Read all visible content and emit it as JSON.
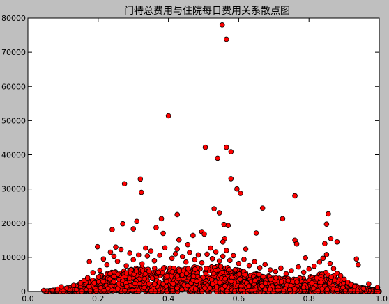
{
  "chart_data": {
    "type": "scatter",
    "title": "门特总费用与住院每日费用关系散点图",
    "xlabel": "",
    "ylabel": "",
    "xlim": [
      0.0,
      1.0
    ],
    "ylim": [
      0,
      80000
    ],
    "xticks": [
      0.0,
      0.2,
      0.4,
      0.6,
      0.8,
      1.0
    ],
    "xtick_labels": [
      "0.0",
      "0.2",
      "0.4",
      "0.6",
      "0.8",
      "1.0"
    ],
    "yticks": [
      0,
      10000,
      20000,
      30000,
      40000,
      50000,
      60000,
      70000,
      80000
    ],
    "ytick_labels": [
      "0",
      "10000",
      "20000",
      "30000",
      "40000",
      "50000",
      "60000",
      "70000",
      "80000"
    ],
    "grid": false,
    "marker_color": "#ff0000",
    "marker_edge": "#000000",
    "points": [
      [
        0.553,
        78000
      ],
      [
        0.565,
        73800
      ],
      [
        0.4,
        51400
      ],
      [
        0.505,
        42200
      ],
      [
        0.565,
        42200
      ],
      [
        0.578,
        40900
      ],
      [
        0.54,
        39000
      ],
      [
        0.275,
        31500
      ],
      [
        0.32,
        32900
      ],
      [
        0.323,
        29000
      ],
      [
        0.578,
        33000
      ],
      [
        0.595,
        30000
      ],
      [
        0.605,
        28700
      ],
      [
        0.76,
        28000
      ],
      [
        0.668,
        24400
      ],
      [
        0.53,
        24200
      ],
      [
        0.545,
        23000
      ],
      [
        0.855,
        22700
      ],
      [
        0.425,
        22500
      ],
      [
        0.725,
        21300
      ],
      [
        0.31,
        20500
      ],
      [
        0.85,
        19700
      ],
      [
        0.27,
        19800
      ],
      [
        0.558,
        19600
      ],
      [
        0.57,
        19300
      ],
      [
        0.38,
        21300
      ],
      [
        0.24,
        18100
      ],
      [
        0.3,
        18300
      ],
      [
        0.365,
        18700
      ],
      [
        0.385,
        17000
      ],
      [
        0.47,
        16400
      ],
      [
        0.495,
        17500
      ],
      [
        0.502,
        16800
      ],
      [
        0.65,
        17100
      ],
      [
        0.43,
        15100
      ],
      [
        0.56,
        15500
      ],
      [
        0.76,
        15000
      ],
      [
        0.862,
        15500
      ],
      [
        0.88,
        14500
      ],
      [
        0.845,
        14000
      ],
      [
        0.25,
        13000
      ],
      [
        0.198,
        13100
      ],
      [
        0.765,
        13900
      ],
      [
        0.935,
        9500
      ],
      [
        0.555,
        14500
      ],
      [
        0.455,
        13700
      ],
      [
        0.52,
        12700
      ],
      [
        0.335,
        12700
      ],
      [
        0.425,
        12400
      ],
      [
        0.62,
        12400
      ],
      [
        0.79,
        9800
      ],
      [
        0.94,
        7800
      ],
      [
        0.175,
        8700
      ],
      [
        0.97,
        2200
      ],
      [
        0.995,
        1200
      ],
      [
        0.045,
        300
      ],
      [
        0.07,
        300
      ],
      [
        0.085,
        700
      ],
      [
        0.095,
        1400
      ],
      [
        0.11,
        1000
      ],
      [
        0.13,
        1800
      ],
      [
        0.15,
        2500
      ],
      [
        0.16,
        3200
      ],
      [
        0.17,
        4000
      ],
      [
        0.185,
        5500
      ],
      [
        0.205,
        6200
      ],
      [
        0.215,
        9500
      ],
      [
        0.225,
        7800
      ],
      [
        0.235,
        11500
      ],
      [
        0.245,
        10300
      ],
      [
        0.255,
        8800
      ],
      [
        0.265,
        12300
      ],
      [
        0.28,
        7500
      ],
      [
        0.29,
        11200
      ],
      [
        0.3,
        9300
      ],
      [
        0.315,
        10700
      ],
      [
        0.325,
        8100
      ],
      [
        0.34,
        10400
      ],
      [
        0.35,
        11800
      ],
      [
        0.36,
        9000
      ],
      [
        0.375,
        10600
      ],
      [
        0.39,
        12800
      ],
      [
        0.41,
        9700
      ],
      [
        0.42,
        11000
      ],
      [
        0.44,
        10200
      ],
      [
        0.45,
        8600
      ],
      [
        0.46,
        11400
      ],
      [
        0.475,
        9300
      ],
      [
        0.485,
        10700
      ],
      [
        0.495,
        8400
      ],
      [
        0.51,
        10900
      ],
      [
        0.525,
        9600
      ],
      [
        0.535,
        11600
      ],
      [
        0.545,
        8900
      ],
      [
        0.555,
        10300
      ],
      [
        0.565,
        12000
      ],
      [
        0.575,
        9100
      ],
      [
        0.585,
        10500
      ],
      [
        0.6,
        8200
      ],
      [
        0.615,
        9400
      ],
      [
        0.63,
        7600
      ],
      [
        0.645,
        8700
      ],
      [
        0.66,
        6900
      ],
      [
        0.675,
        7900
      ],
      [
        0.69,
        6300
      ],
      [
        0.705,
        5800
      ],
      [
        0.72,
        6800
      ],
      [
        0.735,
        5200
      ],
      [
        0.75,
        6100
      ],
      [
        0.77,
        7200
      ],
      [
        0.785,
        5600
      ],
      [
        0.8,
        6600
      ],
      [
        0.815,
        7400
      ],
      [
        0.83,
        8600
      ],
      [
        0.84,
        9700
      ],
      [
        0.85,
        10800
      ],
      [
        0.86,
        8200
      ],
      [
        0.87,
        6700
      ],
      [
        0.88,
        5300
      ],
      [
        0.89,
        4600
      ],
      [
        0.9,
        3600
      ],
      [
        0.91,
        2700
      ],
      [
        0.92,
        2000
      ],
      [
        0.93,
        1500
      ],
      [
        0.955,
        900
      ]
    ],
    "dense_band": [
      [
        0.05,
        200
      ],
      [
        0.1,
        700
      ],
      [
        0.15,
        2200
      ],
      [
        0.2,
        4500
      ],
      [
        0.25,
        6000
      ],
      [
        0.3,
        6800
      ],
      [
        0.35,
        7000
      ],
      [
        0.4,
        7200
      ],
      [
        0.45,
        7200
      ],
      [
        0.5,
        7200
      ],
      [
        0.55,
        7400
      ],
      [
        0.6,
        6500
      ],
      [
        0.65,
        5200
      ],
      [
        0.7,
        4300
      ],
      [
        0.75,
        3800
      ],
      [
        0.8,
        4200
      ],
      [
        0.85,
        5800
      ],
      [
        0.9,
        3000
      ],
      [
        0.95,
        1200
      ],
      [
        1.0,
        400
      ]
    ]
  }
}
